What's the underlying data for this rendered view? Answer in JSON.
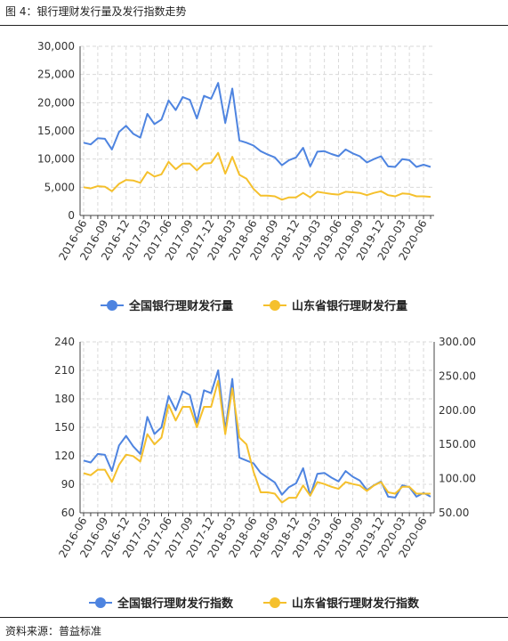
{
  "figure_title": "图 4：银行理财发行量及发行指数走势",
  "source": "资料来源：普益标准",
  "colors": {
    "national": "#4e84e0",
    "shandong": "#f5c02c",
    "grid": "#d9d9d9",
    "axis": "#444444"
  },
  "chart_data": [
    {
      "type": "line",
      "categories": [
        "2016-06",
        "2016-07",
        "2016-08",
        "2016-09",
        "2016-10",
        "2016-11",
        "2016-12",
        "2017-01",
        "2017-02",
        "2017-03",
        "2017-04",
        "2017-05",
        "2017-06",
        "2017-07",
        "2017-08",
        "2017-09",
        "2017-10",
        "2017-11",
        "2017-12",
        "2018-01",
        "2018-02",
        "2018-03",
        "2018-04",
        "2018-05",
        "2018-06",
        "2018-07",
        "2018-08",
        "2018-09",
        "2018-10",
        "2018-11",
        "2018-12",
        "2019-01",
        "2019-02",
        "2019-03",
        "2019-04",
        "2019-05",
        "2019-06",
        "2019-07",
        "2019-08",
        "2019-09",
        "2019-10",
        "2019-11",
        "2019-12",
        "2020-01",
        "2020-02",
        "2020-03",
        "2020-04",
        "2020-05",
        "2020-06",
        "2020-07"
      ],
      "xticks": [
        "2016-06",
        "2016-09",
        "2016-12",
        "2017-03",
        "2017-06",
        "2017-09",
        "2017-12",
        "2018-03",
        "2018-06",
        "2018-09",
        "2018-12",
        "2019-03",
        "2019-06",
        "2019-09",
        "2019-12",
        "2020-03",
        "2020-06"
      ],
      "ylim": [
        0,
        30000
      ],
      "yticks": [
        "0",
        "5,000",
        "10,000",
        "15,000",
        "20,000",
        "25,000",
        "30,000"
      ],
      "grid": true,
      "legend_position": "bottom",
      "series": [
        {
          "name": "全国银行理财发行量",
          "values": [
            12900,
            12600,
            13700,
            13600,
            11700,
            14800,
            15900,
            14500,
            13800,
            18000,
            16200,
            17000,
            20400,
            18700,
            21000,
            20500,
            17200,
            21200,
            20700,
            23500,
            16400,
            22500,
            13300,
            12900,
            12400,
            11400,
            10800,
            10300,
            8900,
            9800,
            10300,
            12000,
            8700,
            11300,
            11400,
            10900,
            10500,
            11700,
            11000,
            10500,
            9400,
            10000,
            10500,
            8700,
            8600,
            10000,
            9800,
            8600,
            9000,
            8600
          ]
        },
        {
          "name": "山东省银行理财发行量",
          "values": [
            5000,
            4800,
            5200,
            5100,
            4300,
            5600,
            6300,
            6200,
            5800,
            7700,
            6900,
            7300,
            9500,
            8200,
            9200,
            9200,
            8000,
            9200,
            9300,
            11100,
            7400,
            10400,
            7200,
            6500,
            4700,
            3500,
            3500,
            3400,
            2800,
            3200,
            3200,
            4000,
            3200,
            4200,
            4000,
            3800,
            3700,
            4200,
            4100,
            4000,
            3600,
            4000,
            4300,
            3600,
            3400,
            3900,
            3800,
            3400,
            3400,
            3300
          ]
        }
      ]
    },
    {
      "type": "line",
      "categories": [
        "2016-06",
        "2016-07",
        "2016-08",
        "2016-09",
        "2016-10",
        "2016-11",
        "2016-12",
        "2017-01",
        "2017-02",
        "2017-03",
        "2017-04",
        "2017-05",
        "2017-06",
        "2017-07",
        "2017-08",
        "2017-09",
        "2017-10",
        "2017-11",
        "2017-12",
        "2018-01",
        "2018-02",
        "2018-03",
        "2018-04",
        "2018-05",
        "2018-06",
        "2018-07",
        "2018-08",
        "2018-09",
        "2018-10",
        "2018-11",
        "2018-12",
        "2019-01",
        "2019-02",
        "2019-03",
        "2019-04",
        "2019-05",
        "2019-06",
        "2019-07",
        "2019-08",
        "2019-09",
        "2019-10",
        "2019-11",
        "2019-12",
        "2020-01",
        "2020-02",
        "2020-03",
        "2020-04",
        "2020-05",
        "2020-06",
        "2020-07"
      ],
      "xticks": [
        "2016-06",
        "2016-09",
        "2016-12",
        "2017-03",
        "2017-06",
        "2017-09",
        "2017-12",
        "2018-03",
        "2018-06",
        "2018-09",
        "2018-12",
        "2019-03",
        "2019-06",
        "2019-09",
        "2019-12",
        "2020-03",
        "2020-06"
      ],
      "ylim_left": [
        60,
        240
      ],
      "yticks_left": [
        "60",
        "90",
        "120",
        "150",
        "180",
        "210",
        "240"
      ],
      "ylim_right": [
        50,
        300
      ],
      "yticks_right": [
        "50.00",
        "100.00",
        "150.00",
        "200.00",
        "250.00",
        "300.00"
      ],
      "grid": true,
      "legend_position": "bottom",
      "series": [
        {
          "name": "全国银行理财发行指数",
          "axis": "left",
          "values": [
            115,
            113,
            122,
            121,
            104,
            131,
            141,
            130,
            122,
            161,
            143,
            150,
            183,
            168,
            188,
            184,
            155,
            189,
            186,
            210,
            147,
            201,
            118,
            115,
            112,
            102,
            97,
            92,
            79,
            87,
            91,
            107,
            78,
            101,
            102,
            97,
            93,
            104,
            98,
            94,
            84,
            89,
            93,
            77,
            76,
            89,
            87,
            77,
            81,
            77
          ]
        },
        {
          "name": "山东省银行理财发行指数",
          "axis": "right",
          "values": [
            108,
            105,
            113,
            113,
            95,
            120,
            135,
            133,
            125,
            165,
            150,
            160,
            208,
            185,
            205,
            205,
            175,
            205,
            205,
            243,
            165,
            232,
            160,
            150,
            110,
            80,
            80,
            78,
            65,
            72,
            72,
            90,
            75,
            95,
            92,
            88,
            85,
            95,
            92,
            90,
            82,
            90,
            95,
            80,
            78,
            88,
            88,
            78,
            78,
            78
          ]
        }
      ]
    }
  ]
}
